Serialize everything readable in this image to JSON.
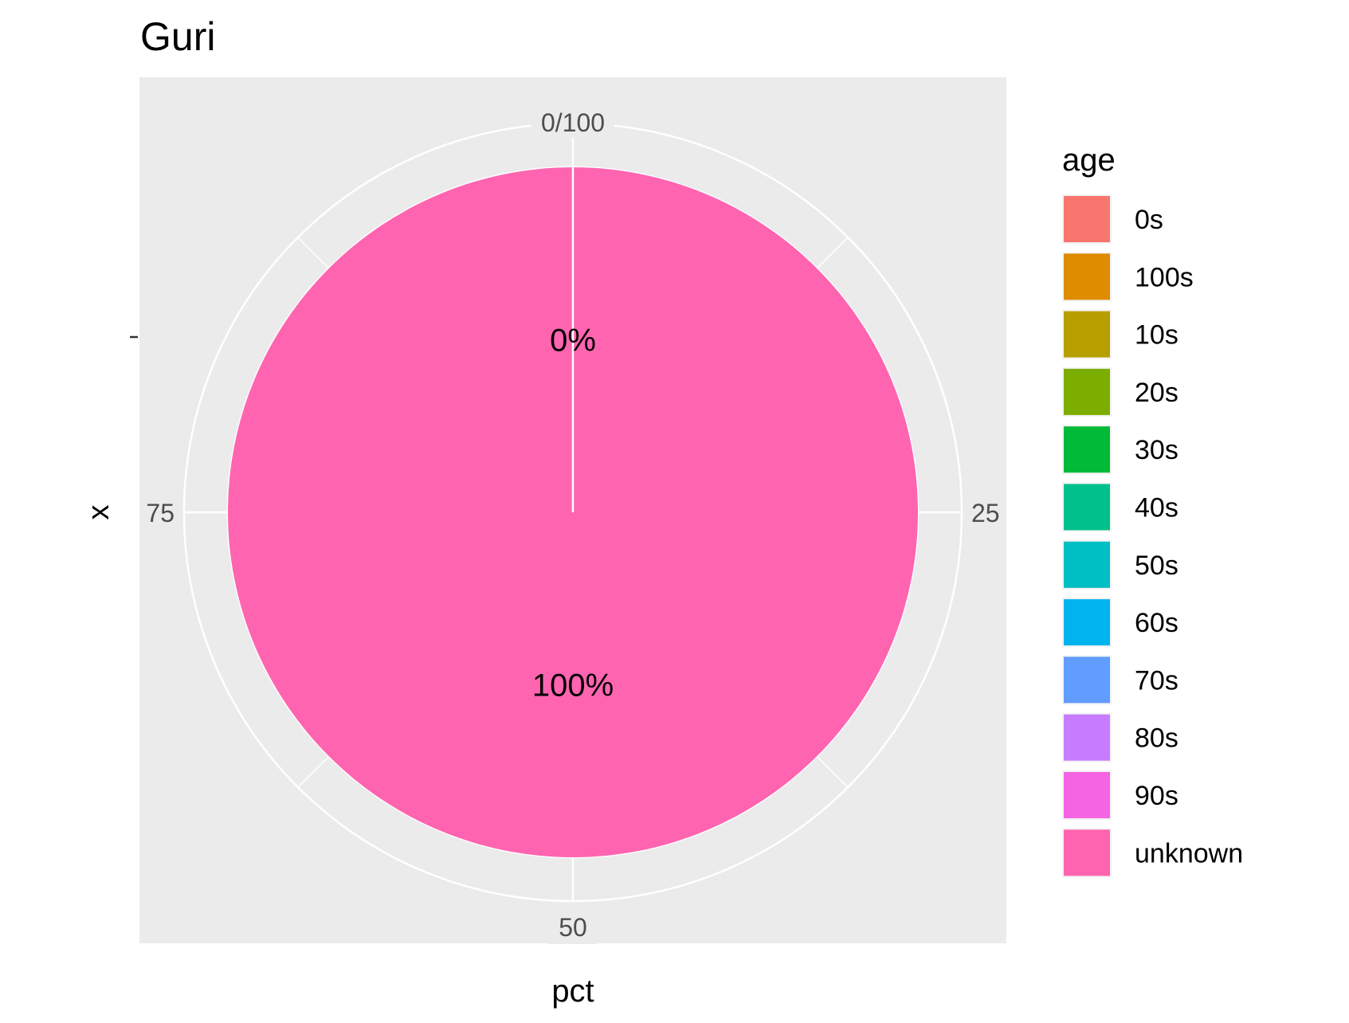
{
  "chart_data": {
    "type": "pie",
    "title": "Guri",
    "xlabel": "pct",
    "ylabel": "x",
    "y_tick_label": "-",
    "theta_ticks": [
      {
        "value": 0,
        "label": "0/100"
      },
      {
        "value": 25,
        "label": "25"
      },
      {
        "value": 50,
        "label": "50"
      },
      {
        "value": 75,
        "label": "75"
      }
    ],
    "theta_range": [
      0,
      100
    ],
    "legend_title": "age",
    "legend_position": "right",
    "categories": [
      "0s",
      "100s",
      "10s",
      "20s",
      "30s",
      "40s",
      "50s",
      "60s",
      "70s",
      "80s",
      "90s",
      "unknown"
    ],
    "values": [
      0,
      0,
      0,
      0,
      0,
      0,
      0,
      0,
      0,
      0,
      0,
      100
    ],
    "colors": [
      "#F8766D",
      "#DE8C00",
      "#B79F00",
      "#7CAE00",
      "#00BA38",
      "#00C08B",
      "#00BFC4",
      "#00B4F0",
      "#619CFF",
      "#C77CFF",
      "#F564E3",
      "#FF64B0"
    ],
    "data_labels": [
      {
        "label": "0%",
        "position": 0
      },
      {
        "label": "100%",
        "position": 50
      }
    ],
    "panel_background": "#EBEBEB",
    "grid": true
  }
}
